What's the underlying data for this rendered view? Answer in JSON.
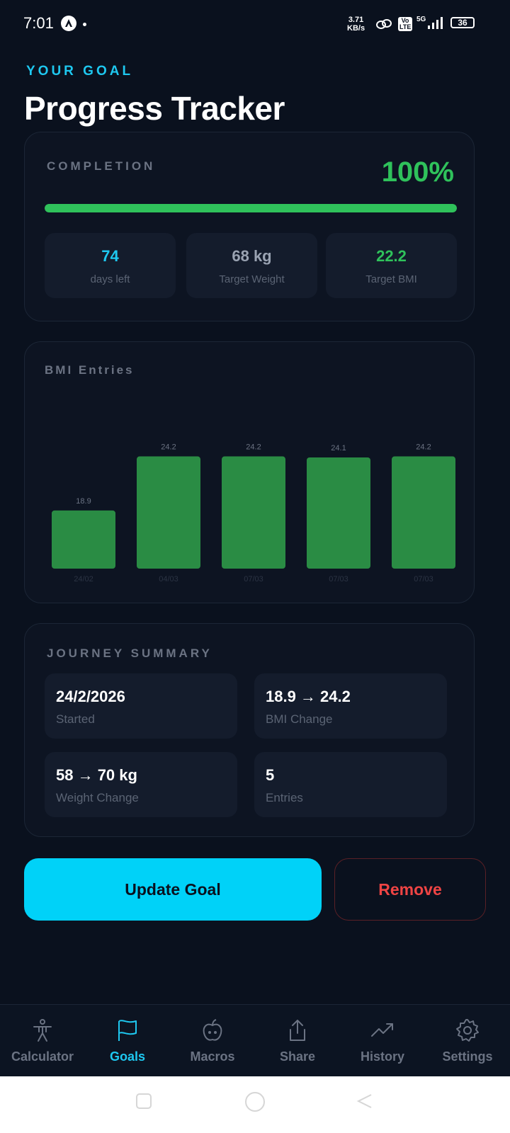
{
  "status_bar": {
    "time": "7:01",
    "speed_top": "3.71",
    "speed_bottom": "KB/s",
    "network": "5G",
    "volte": "Vo LTE",
    "battery": "36"
  },
  "header": {
    "eyebrow": "YOUR GOAL",
    "title": "Progress Tracker"
  },
  "completion": {
    "label": "COMPLETION",
    "percent_text": "100%",
    "progress_fraction": 1.0,
    "stats": [
      {
        "value": "74",
        "label": "days left",
        "color": "#1ec8f0"
      },
      {
        "value": "68 kg",
        "label": "Target Weight",
        "color": "#9aa3b2"
      },
      {
        "value": "22.2",
        "label": "Target BMI",
        "color": "#2fc25b"
      }
    ]
  },
  "chart_data": {
    "type": "bar",
    "title": "BMI Entries",
    "categories": [
      "24/02",
      "04/03",
      "07/03",
      "07/03",
      "07/03"
    ],
    "values": [
      18.9,
      24.2,
      24.2,
      24.1,
      24.2
    ],
    "value_labels": [
      "18.9",
      "24.2",
      "24.2",
      "24.1",
      "24.2"
    ],
    "bar_color": "#2a8c44",
    "ylim": [
      15,
      25
    ]
  },
  "journey": {
    "label": "JOURNEY SUMMARY",
    "items": [
      {
        "value": "24/2/2026",
        "label": "Started"
      },
      {
        "value": "18.9 → 24.2",
        "label": "BMI Change"
      },
      {
        "value": "58 → 70 kg",
        "label": "Weight Change"
      },
      {
        "value": "5",
        "label": "Entries"
      }
    ]
  },
  "actions": {
    "update_label": "Update Goal",
    "remove_label": "Remove"
  },
  "nav": {
    "items": [
      {
        "label": "Calculator",
        "icon": "person-icon"
      },
      {
        "label": "Goals",
        "icon": "flag-icon"
      },
      {
        "label": "Macros",
        "icon": "apple-icon"
      },
      {
        "label": "Share",
        "icon": "share-icon"
      },
      {
        "label": "History",
        "icon": "trending-up-icon"
      },
      {
        "label": "Settings",
        "icon": "gear-icon"
      }
    ],
    "active": "Goals"
  },
  "colors": {
    "accent": "#1ec8f0",
    "success": "#2fc25b",
    "danger": "#ef4444",
    "background": "#0a111e"
  }
}
